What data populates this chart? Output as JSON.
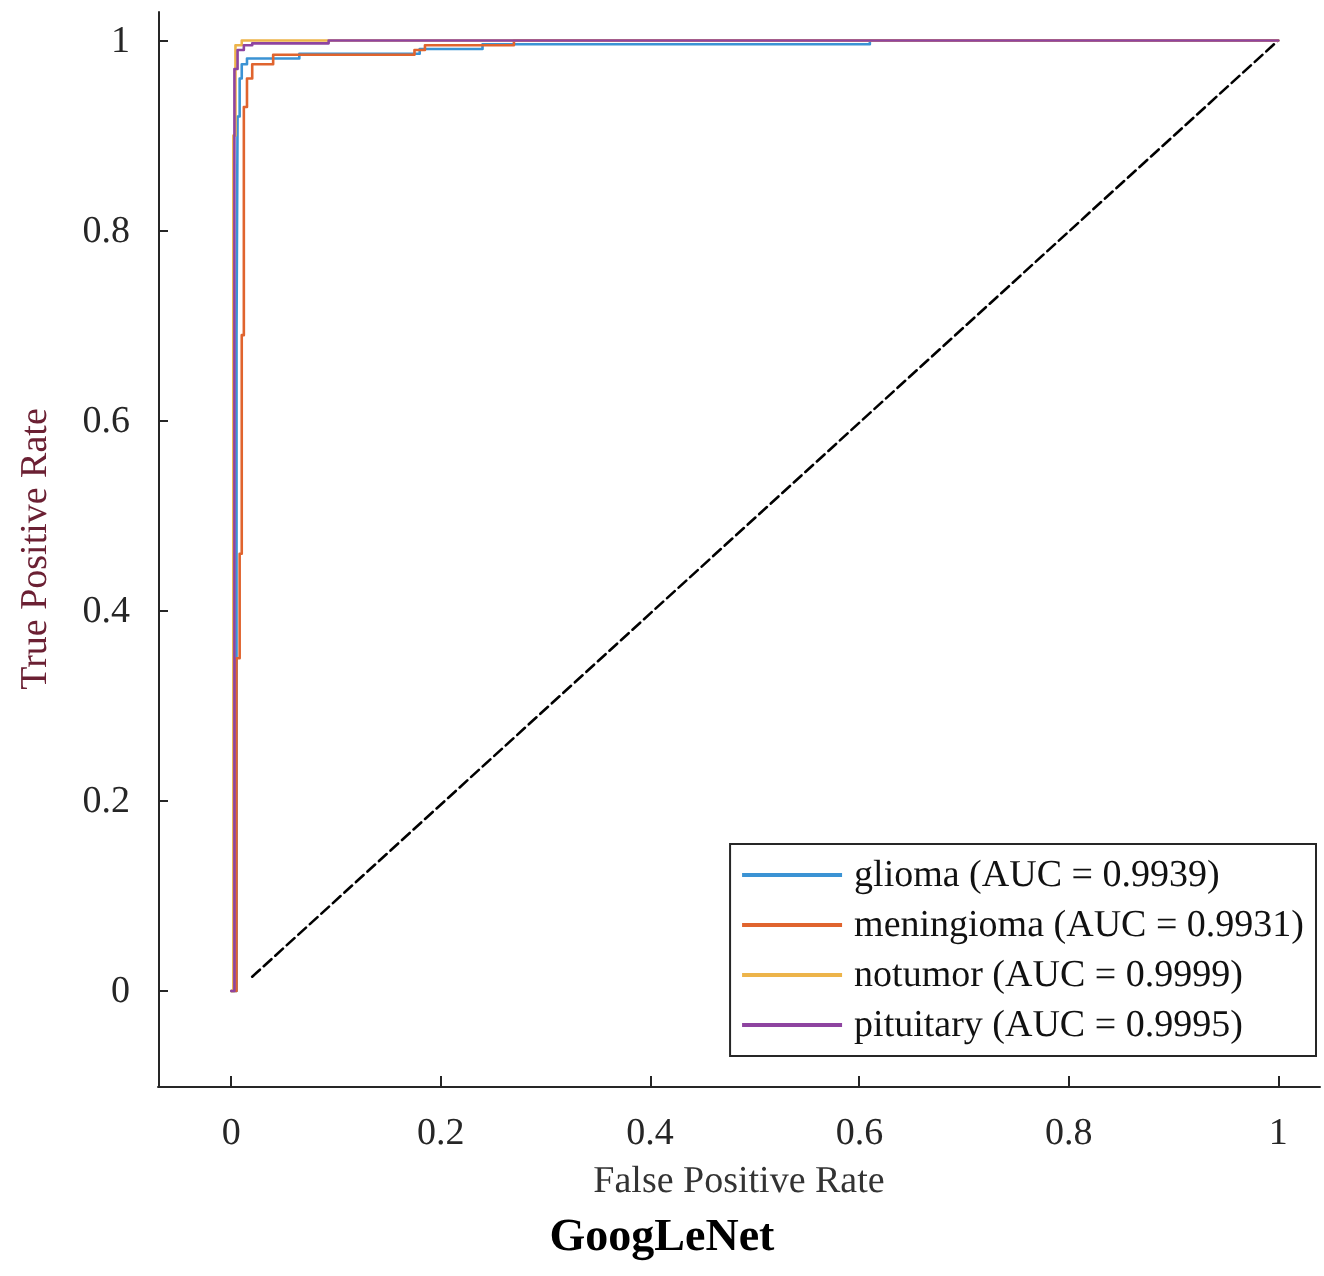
{
  "chart_data": {
    "type": "line",
    "title": "GoogLeNet",
    "xlabel": "False Positive Rate",
    "ylabel": "True Positive Rate",
    "xlim": [
      -0.07,
      1.04
    ],
    "ylim": [
      -0.1,
      1.03
    ],
    "xticks": [
      0,
      0.2,
      0.4,
      0.6,
      0.8,
      1
    ],
    "yticks": [
      0,
      0.2,
      0.4,
      0.6,
      0.8,
      1
    ],
    "grid": false,
    "legend": "bottom right",
    "marker": "none",
    "series": [
      {
        "name": "glioma (AUC = 0.9939)",
        "color": "#3b93d4",
        "x": [
          0,
          0.005,
          0.005,
          0.006,
          0.006,
          0.008,
          0.008,
          0.01,
          0.01,
          0.015,
          0.015,
          0.065,
          0.065,
          0.18,
          0.18,
          0.24,
          0.24,
          0.61,
          0.61,
          1
        ],
        "values": [
          0,
          0,
          0.69,
          0.69,
          0.92,
          0.92,
          0.96,
          0.96,
          0.975,
          0.975,
          0.981,
          0.981,
          0.986,
          0.986,
          0.991,
          0.991,
          0.996,
          0.996,
          1,
          1
        ]
      },
      {
        "name": "meningioma (AUC = 0.9931)",
        "color": "#e0642e",
        "x": [
          0,
          0.005,
          0.005,
          0.008,
          0.008,
          0.01,
          0.01,
          0.012,
          0.012,
          0.015,
          0.015,
          0.02,
          0.02,
          0.04,
          0.04,
          0.175,
          0.175,
          0.185,
          0.185,
          0.27,
          0.27,
          1
        ],
        "values": [
          0,
          0,
          0.35,
          0.35,
          0.46,
          0.46,
          0.69,
          0.69,
          0.93,
          0.93,
          0.96,
          0.96,
          0.975,
          0.975,
          0.985,
          0.985,
          0.99,
          0.99,
          0.995,
          0.995,
          1,
          1
        ]
      },
      {
        "name": "notumor (AUC = 0.9999)",
        "color": "#edb44a",
        "x": [
          0,
          0.002,
          0.002,
          0.004,
          0.004,
          0.01,
          0.01,
          1
        ],
        "values": [
          0,
          0,
          0.9,
          0.9,
          0.995,
          0.995,
          1,
          1
        ]
      },
      {
        "name": "pituitary (AUC = 0.9995)",
        "color": "#8e44a0",
        "x": [
          0,
          0.003,
          0.003,
          0.006,
          0.006,
          0.012,
          0.012,
          0.02,
          0.02,
          0.093,
          0.093,
          1
        ],
        "values": [
          0,
          0,
          0.97,
          0.97,
          0.99,
          0.99,
          0.995,
          0.995,
          0.997,
          0.997,
          1,
          1
        ]
      },
      {
        "color": "#000000",
        "line_style": "dashed",
        "x": [
          0.02,
          1
        ],
        "values": [
          0.015,
          1
        ]
      }
    ]
  }
}
